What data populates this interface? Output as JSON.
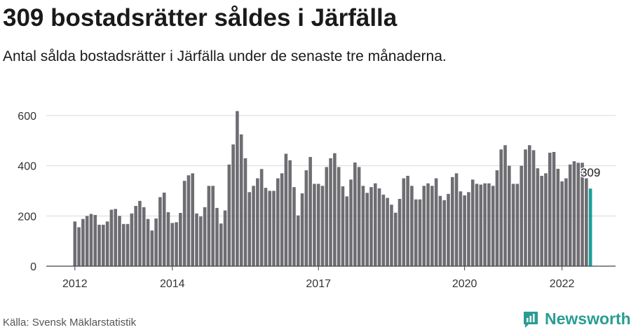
{
  "title": "309 bostadsrätter såldes i Järfälla",
  "subtitle": "Antal sålda bostadsrätter i Järfälla under de senaste tre månaderna.",
  "source": "Källa: Svensk Mäklarstatistik",
  "brand": "Newsworthy",
  "colors": {
    "bar": "#6e6d72",
    "highlight": "#1a9e98",
    "grid": "#d9d9d9",
    "axis": "#444444",
    "brand": "#2a9d93"
  },
  "chart_data": {
    "type": "bar",
    "title": "309 bostadsrätter såldes i Järfälla",
    "xlabel": "",
    "ylabel": "",
    "ylim": [
      0,
      650
    ],
    "yticks": [
      0,
      200,
      400,
      600
    ],
    "grid": true,
    "x_tick_labels": [
      {
        "label": "2012",
        "index": 0
      },
      {
        "label": "2014",
        "index": 24
      },
      {
        "label": "2017",
        "index": 60
      },
      {
        "label": "2020",
        "index": 96
      },
      {
        "label": "2022",
        "index": 120
      }
    ],
    "highlight_index": 127,
    "highlight_label": "309",
    "values": [
      178,
      155,
      188,
      200,
      208,
      204,
      165,
      165,
      178,
      225,
      228,
      200,
      168,
      168,
      210,
      240,
      260,
      235,
      188,
      142,
      190,
      275,
      293,
      215,
      172,
      175,
      212,
      340,
      362,
      370,
      210,
      198,
      235,
      320,
      320,
      232,
      170,
      222,
      405,
      485,
      618,
      525,
      430,
      295,
      320,
      350,
      387,
      312,
      300,
      300,
      350,
      370,
      448,
      422,
      315,
      202,
      290,
      382,
      435,
      328,
      328,
      320,
      395,
      430,
      450,
      395,
      318,
      278,
      345,
      413,
      395,
      320,
      292,
      315,
      330,
      310,
      285,
      272,
      245,
      213,
      268,
      350,
      360,
      320,
      266,
      266,
      320,
      330,
      320,
      350,
      280,
      263,
      288,
      355,
      370,
      298,
      282,
      295,
      345,
      328,
      325,
      330,
      330,
      320,
      382,
      465,
      482,
      400,
      328,
      328,
      400,
      465,
      482,
      462,
      390,
      360,
      370,
      452,
      455,
      388,
      338,
      350,
      405,
      418,
      412,
      412,
      350,
      309
    ]
  }
}
